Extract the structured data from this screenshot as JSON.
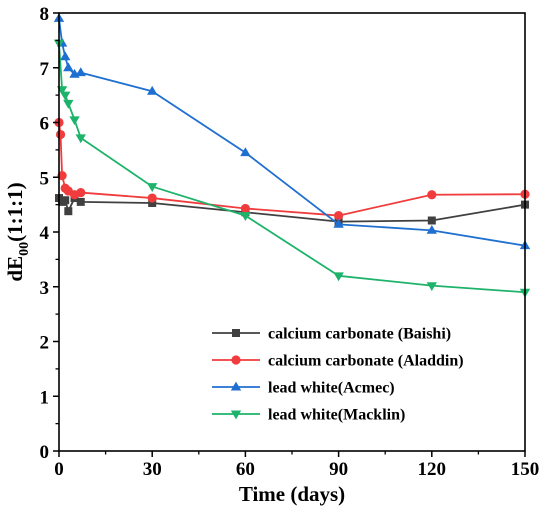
{
  "chart_data": {
    "type": "line",
    "xlabel": "Time (days)",
    "ylabel_main": "dE",
    "ylabel_sub": "00",
    "ylabel_tail": "(1:1:1)",
    "xlim": [
      0,
      150
    ],
    "ylim": [
      0,
      8
    ],
    "xticks": [
      "0",
      "30",
      "60",
      "90",
      "120",
      "150"
    ],
    "yticks": [
      "0",
      "1",
      "2",
      "3",
      "4",
      "5",
      "6",
      "7",
      "8"
    ],
    "legend_position": "bottom-right",
    "grid": false,
    "series": [
      {
        "name": "calcium carbonate (Baishi)",
        "color": "#404040",
        "marker": "square",
        "x": [
          0,
          1,
          2,
          3,
          5,
          7,
          30,
          60,
          90,
          120,
          150
        ],
        "y": [
          4.62,
          4.55,
          4.58,
          4.38,
          4.62,
          4.55,
          4.53,
          4.36,
          4.19,
          4.21,
          4.5
        ]
      },
      {
        "name": "calcium carbonate (Aladdin)",
        "color": "#f03c3c",
        "marker": "circle",
        "x": [
          0,
          0.5,
          1,
          2,
          3,
          5,
          7,
          30,
          60,
          90,
          120,
          150
        ],
        "y": [
          6.0,
          5.78,
          5.03,
          4.8,
          4.75,
          4.68,
          4.72,
          4.62,
          4.43,
          4.3,
          4.68,
          4.69
        ]
      },
      {
        "name": "lead white(Acmec)",
        "color": "#1f6fd1",
        "marker": "triangle-up",
        "x": [
          0,
          1,
          2,
          3,
          5,
          7,
          30,
          60,
          90,
          120,
          150
        ],
        "y": [
          7.9,
          7.45,
          7.2,
          7.0,
          6.88,
          6.91,
          6.57,
          5.45,
          4.14,
          4.03,
          3.75
        ]
      },
      {
        "name": "lead white(Macklin)",
        "color": "#1db36a",
        "marker": "triangle-down",
        "x": [
          0,
          1,
          2,
          3,
          5,
          7,
          30,
          60,
          90,
          120,
          150
        ],
        "y": [
          7.45,
          6.6,
          6.5,
          6.35,
          6.05,
          5.72,
          4.83,
          4.3,
          3.2,
          3.02,
          2.9
        ]
      }
    ]
  }
}
